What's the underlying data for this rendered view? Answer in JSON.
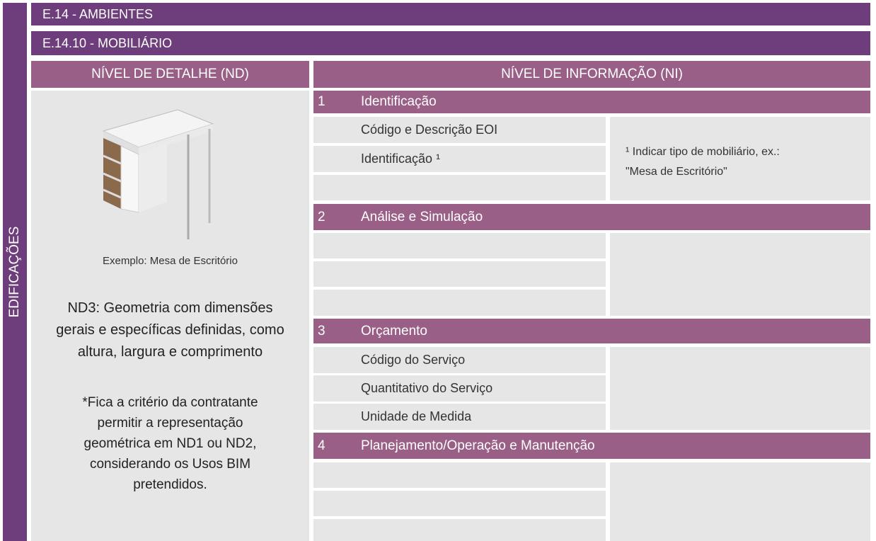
{
  "header": {
    "category": "EDIFICAÇÕES",
    "title": "E.14 - AMBIENTES",
    "subtitle": "E.14.10 - MOBILIÁRIO"
  },
  "columns": {
    "nd": "NÍVEL DE DETALHE (ND)",
    "ni": "NÍVEL DE INFORMAÇÃO (NI)"
  },
  "left": {
    "caption": "Exemplo: Mesa de Escritório",
    "description_lines": [
      "ND3: Geometria com dimensões",
      "gerais e específicas definidas, como",
      "altura, largura e comprimento"
    ],
    "note_lines": [
      "*Fica a critério da contratante",
      "permitir a representação",
      "geométrica em ND1 ou ND2,",
      "considerando os Usos BIM",
      "pretendidos."
    ]
  },
  "sections": [
    {
      "number": "1",
      "title": "Identificação",
      "items": [
        "Código e Descrição EOI",
        "Identificação ¹"
      ],
      "note_lines": [
        "¹ Indicar tipo de mobiliário, ex.:",
        "\"Mesa de Escritório\""
      ]
    },
    {
      "number": "2",
      "title": "Análise e Simulação"
    },
    {
      "number": "3",
      "title": "Orçamento",
      "items": [
        "Código do Serviço",
        "Quantitativo do Serviço",
        "Unidade de Medida"
      ]
    },
    {
      "number": "4",
      "title": "Planejamento/Operação e Manutenção"
    }
  ]
}
